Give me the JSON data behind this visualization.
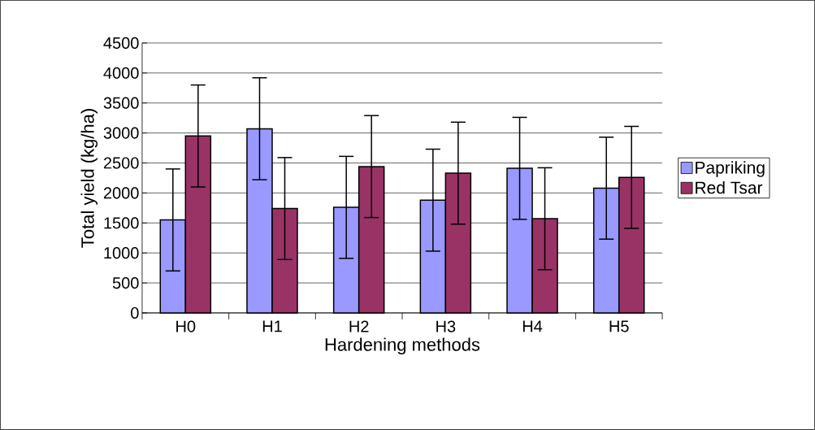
{
  "chart_data": {
    "type": "bar",
    "xlabel": "Hardening methods",
    "ylabel": "Total yield (kg/ha)",
    "categories": [
      "H0",
      "H1",
      "H2",
      "H3",
      "H4",
      "H5"
    ],
    "series": [
      {
        "name": "Papriking",
        "color": "#9999ff",
        "values": [
          1550,
          3070,
          1760,
          1880,
          2410,
          2080
        ],
        "errors": [
          850,
          850,
          850,
          850,
          850,
          850
        ]
      },
      {
        "name": "Red Tsar",
        "color": "#993366",
        "values": [
          2950,
          1740,
          2440,
          2330,
          1570,
          2260
        ],
        "errors": [
          850,
          850,
          850,
          850,
          850,
          850
        ]
      }
    ],
    "ylim": [
      0,
      4500
    ],
    "yticks": [
      0,
      500,
      1000,
      1500,
      2000,
      2500,
      3000,
      3500,
      4000,
      4500
    ],
    "grid": "y",
    "legend": "right"
  }
}
